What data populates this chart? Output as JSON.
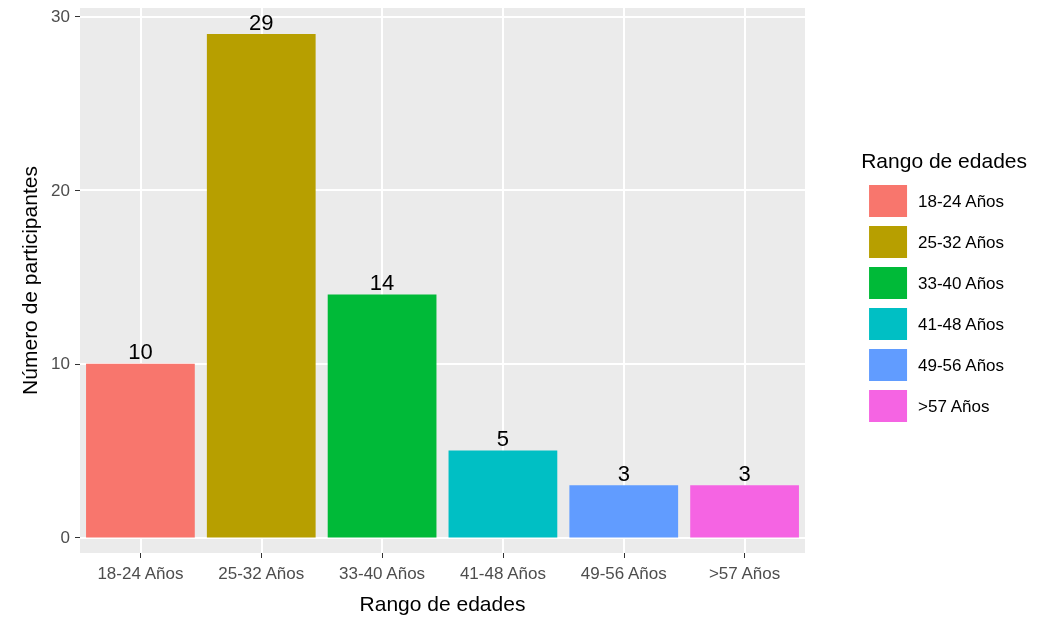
{
  "chart_data": {
    "type": "bar",
    "xlabel": "Rango de edades",
    "ylabel": "Número de participantes",
    "legend_title": "Rango de edades",
    "categories": [
      "18-24 Años",
      "25-32 Años",
      "33-40 Años",
      "41-48 Años",
      "49-56 Años",
      ">57 Años"
    ],
    "series": [
      {
        "name": "18-24 Años",
        "color": "#f8766d",
        "values": [
          10,
          null,
          null,
          null,
          null,
          null
        ]
      },
      {
        "name": "25-32 Años",
        "color": "#b79f00",
        "values": [
          null,
          29,
          null,
          null,
          null,
          null
        ]
      },
      {
        "name": "33-40 Años",
        "color": "#00ba38",
        "values": [
          null,
          null,
          14,
          null,
          null,
          null
        ]
      },
      {
        "name": "41-48 Años",
        "color": "#00bfc4",
        "values": [
          null,
          null,
          null,
          5,
          null,
          null
        ]
      },
      {
        "name": "49-56 Años",
        "color": "#619cff",
        "values": [
          null,
          null,
          null,
          null,
          3,
          null
        ]
      },
      {
        "name": ">57 Años",
        "color": "#f564e3",
        "values": [
          null,
          null,
          null,
          null,
          null,
          3
        ]
      }
    ],
    "ylim": [
      -0.9,
      30.5
    ],
    "yticks": [
      0,
      10,
      20,
      30
    ],
    "grid": true,
    "legend": "right",
    "data_labels": true
  }
}
